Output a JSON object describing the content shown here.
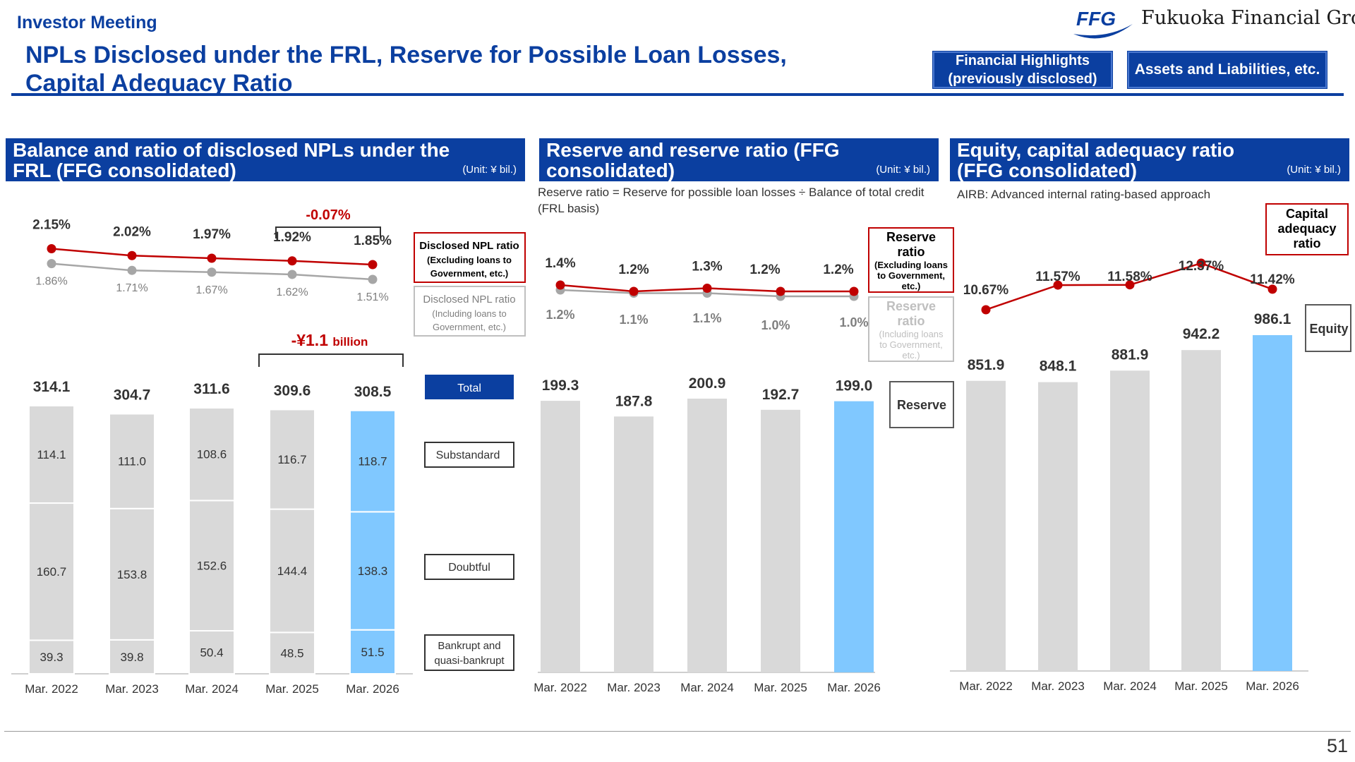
{
  "header": {
    "label": "Investor Meeting",
    "title_lines": [
      "NPLs Disclosed under the FRL, Reserve for Possible Loan Losses,",
      "Capital Adequacy Ratio"
    ],
    "logo_mark": "FFG",
    "logo_text": "Fukuoka Financial Group",
    "buttons": {
      "highlights": "Financial Highlights (previously disclosed)",
      "assets": "Assets and Liabilities, etc."
    }
  },
  "panels": {
    "npl": {
      "title": "Balance and ratio of disclosed NPLs under the FRL (FFG consolidated)",
      "unit": "(Unit: ¥ bil.)"
    },
    "reserve": {
      "title": "Reserve and reserve ratio (FFG consolidated)",
      "unit": "(Unit: ¥ bil.)",
      "note": "Reserve ratio = Reserve for possible loan losses ÷ Balance of total credit (FRL basis)"
    },
    "equity": {
      "title": "Equity, capital adequacy ratio (FFG consolidated)",
      "unit": "(Unit: ¥ bil.)",
      "note": "AIRB: Advanced internal rating-based approach"
    }
  },
  "footer": {
    "page": "51"
  },
  "colors": {
    "brand": "#0b3fa0",
    "bar": "#d9d9d9",
    "highlight": "#80c8ff",
    "ratio_red": "#c00000",
    "ratio_gray": "#a6a6a6"
  },
  "chart_data": [
    {
      "type": "bar",
      "stacked": true,
      "categories": [
        "Mar. 2022",
        "Mar. 2023",
        "Mar. 2024",
        "Mar. 2025",
        "Mar. 2026"
      ],
      "series": [
        {
          "name": "Bankrupt and quasi-bankrupt",
          "values": [
            39.3,
            39.8,
            50.4,
            48.5,
            51.5
          ]
        },
        {
          "name": "Doubtful",
          "values": [
            160.7,
            153.8,
            152.6,
            144.4,
            138.3
          ]
        },
        {
          "name": "Substandard",
          "values": [
            114.1,
            111.0,
            108.6,
            116.7,
            118.7
          ]
        }
      ],
      "totals": [
        314.1,
        304.7,
        311.6,
        309.6,
        308.5
      ],
      "totals_label": "Total",
      "total_labels": [
        "314.1",
        "304.7",
        "311.6",
        "309.6",
        "308.5"
      ],
      "segment_labels": [
        [
          "39.3",
          "160.7",
          "114.1"
        ],
        [
          "39.8",
          "153.8",
          "111.0"
        ],
        [
          "50.4",
          "152.6",
          "108.6"
        ],
        [
          "48.5",
          "144.4",
          "116.7"
        ],
        [
          "51.5",
          "138.3",
          "118.7"
        ]
      ],
      "ratio_lines": [
        {
          "name": "Disclosed NPL ratio",
          "sub": "(Excluding loans to Government, etc.)",
          "values": [
            2.15,
            2.02,
            1.97,
            1.92,
            1.85
          ],
          "labels": [
            "2.15%",
            "2.02%",
            "1.97%",
            "1.92%",
            "1.85%"
          ]
        },
        {
          "name": "Disclosed NPL ratio",
          "sub": "(Including loans to Government, etc.)",
          "values": [
            1.86,
            1.71,
            1.67,
            1.62,
            1.51
          ],
          "labels": [
            "1.86%",
            "1.71%",
            "1.67%",
            "1.62%",
            "1.51%"
          ]
        }
      ],
      "annotations": {
        "ratio_change": "-0.07%",
        "balance_change_main": "-¥1.1",
        "balance_change_unit": "billion"
      }
    },
    {
      "type": "bar",
      "categories": [
        "Mar. 2022",
        "Mar. 2023",
        "Mar. 2024",
        "Mar. 2025",
        "Mar. 2026"
      ],
      "series": [
        {
          "name": "Reserve",
          "values": [
            199.3,
            187.8,
            200.9,
            192.7,
            199.0
          ]
        }
      ],
      "value_labels": [
        "199.3",
        "187.8",
        "200.9",
        "192.7",
        "199.0"
      ],
      "ratio_lines": [
        {
          "name": "Reserve ratio",
          "sub": "(Excluding loans to Government, etc.)",
          "values": [
            1.4,
            1.2,
            1.3,
            1.2,
            1.2
          ],
          "labels": [
            "1.4%",
            "1.2%",
            "1.3%",
            "1.2%",
            "1.2%"
          ]
        },
        {
          "name": "Reserve ratio",
          "sub": "(Including loans to Government, etc.)",
          "values": [
            1.2,
            1.1,
            1.1,
            1.0,
            1.0
          ],
          "labels": [
            "1.2%",
            "1.1%",
            "1.1%",
            "1.0%",
            "1.0%"
          ]
        }
      ]
    },
    {
      "type": "bar",
      "categories": [
        "Mar. 2022",
        "Mar. 2023",
        "Mar. 2024",
        "Mar. 2025",
        "Mar. 2026"
      ],
      "series": [
        {
          "name": "Equity",
          "values": [
            851.9,
            848.1,
            881.9,
            942.2,
            986.1
          ]
        }
      ],
      "value_labels": [
        "851.9",
        "848.1",
        "881.9",
        "942.2",
        "986.1"
      ],
      "ratio_lines": [
        {
          "name": "Capital adequacy ratio",
          "values": [
            10.67,
            11.57,
            11.58,
            12.37,
            11.42
          ],
          "labels": [
            "10.67%",
            "11.57%",
            "11.58%",
            "12.37%",
            "11.42%"
          ]
        }
      ]
    }
  ]
}
